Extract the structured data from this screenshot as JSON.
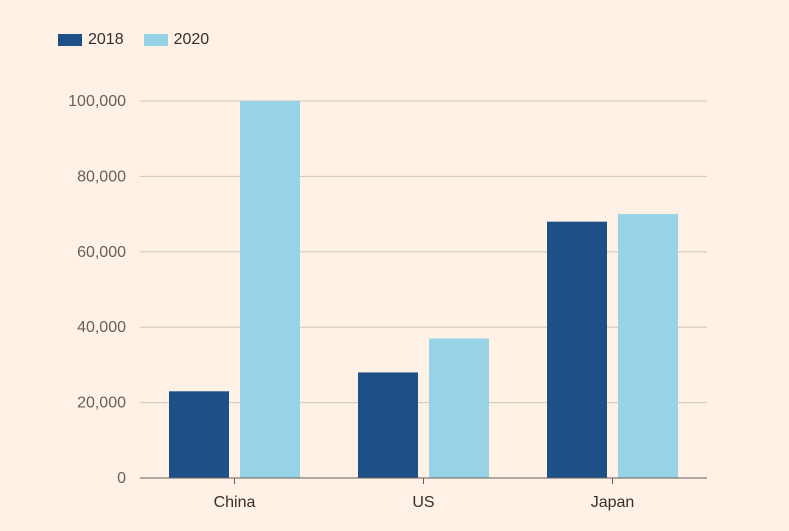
{
  "chart_data": {
    "type": "bar",
    "categories": [
      "China",
      "US",
      "Japan"
    ],
    "series": [
      {
        "name": "2018",
        "values": [
          23000,
          28000,
          68000
        ],
        "color": "#1E5088"
      },
      {
        "name": "2020",
        "values": [
          100000,
          37000,
          70000
        ],
        "color": "#96D3E6"
      }
    ],
    "ylim": [
      0,
      100000
    ],
    "yticks": [
      0,
      20000,
      40000,
      60000,
      80000,
      100000
    ],
    "ytick_labels": [
      "0",
      "20,000",
      "40,000",
      "60,000",
      "80,000",
      "100,000"
    ],
    "grid": true,
    "legend_position": "top-left",
    "background": "#FFF1E5"
  }
}
